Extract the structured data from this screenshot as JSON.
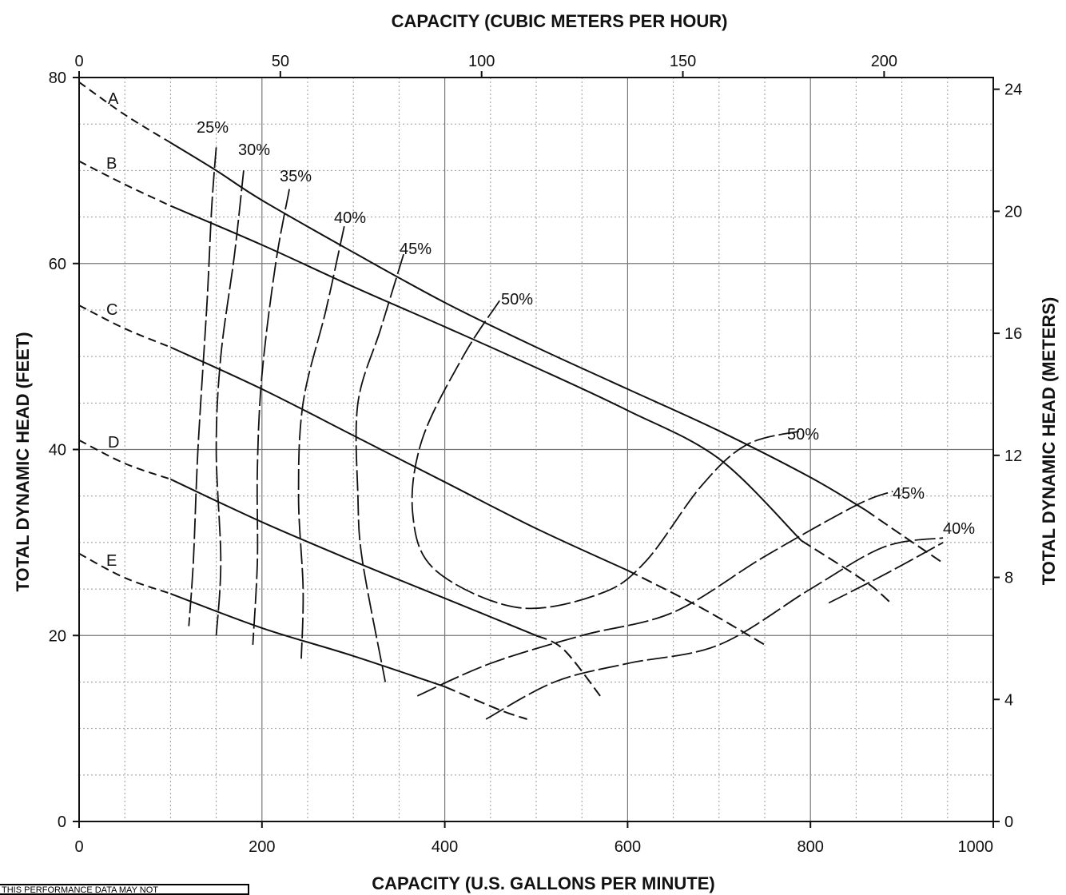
{
  "chart_data": {
    "type": "line",
    "title": "",
    "top_axis_title": "CAPACITY (CUBIC METERS PER HOUR)",
    "xlabel": "CAPACITY (U.S. GALLONS PER MINUTE)",
    "ylabel_left": "TOTAL DYNAMIC HEAD (FEET)",
    "ylabel_right": "TOTAL DYNAMIC HEAD (METERS)",
    "xlim": [
      0,
      1000
    ],
    "ylim": [
      0,
      80
    ],
    "x_ticks": [
      0,
      200,
      400,
      600,
      800,
      1000
    ],
    "y_ticks": [
      0,
      20,
      40,
      60,
      80
    ],
    "top_ticks": [
      0,
      50,
      100,
      150,
      200
    ],
    "right_ticks": [
      0,
      4,
      8,
      12,
      16,
      20,
      24
    ],
    "grid": true,
    "pump_curves": [
      {
        "name": "A",
        "dashed_until": 55,
        "points": [
          [
            0,
            79.5
          ],
          [
            50,
            76
          ],
          [
            100,
            73
          ],
          [
            150,
            70
          ],
          [
            200,
            66.8
          ],
          [
            300,
            61.2
          ],
          [
            400,
            55.8
          ],
          [
            500,
            51
          ],
          [
            600,
            46.5
          ],
          [
            700,
            42
          ],
          [
            800,
            37
          ],
          [
            860,
            33.5
          ],
          [
            900,
            30.8
          ],
          [
            945,
            27.8
          ]
        ]
      },
      {
        "name": "B",
        "dashed_until": 60,
        "points": [
          [
            0,
            71
          ],
          [
            50,
            68.5
          ],
          [
            100,
            66.2
          ],
          [
            200,
            62
          ],
          [
            300,
            57.5
          ],
          [
            400,
            53.2
          ],
          [
            500,
            48.8
          ],
          [
            600,
            44.2
          ],
          [
            700,
            39
          ],
          [
            790,
            30.2
          ],
          [
            860,
            25.8
          ],
          [
            890,
            23.3
          ]
        ]
      },
      {
        "name": "C",
        "dashed_until": 60,
        "points": [
          [
            0,
            55.5
          ],
          [
            50,
            53
          ],
          [
            100,
            51
          ],
          [
            200,
            46.5
          ],
          [
            300,
            41.5
          ],
          [
            400,
            36.5
          ],
          [
            500,
            31.5
          ],
          [
            600,
            27
          ],
          [
            680,
            23
          ],
          [
            750,
            19
          ]
        ]
      },
      {
        "name": "D",
        "dashed_until": 55,
        "points": [
          [
            0,
            41
          ],
          [
            50,
            38.5
          ],
          [
            100,
            36.8
          ],
          [
            200,
            32.2
          ],
          [
            300,
            28
          ],
          [
            400,
            24
          ],
          [
            500,
            20
          ],
          [
            530,
            18.5
          ],
          [
            570,
            13.5
          ]
        ]
      },
      {
        "name": "E",
        "dashed_until": 55,
        "points": [
          [
            0,
            28.8
          ],
          [
            50,
            26.2
          ],
          [
            100,
            24.5
          ],
          [
            200,
            20.8
          ],
          [
            300,
            17.8
          ],
          [
            400,
            14.5
          ],
          [
            460,
            12
          ],
          [
            490,
            11
          ]
        ]
      }
    ],
    "efficiency_curves": [
      {
        "name": "25%",
        "points": [
          [
            150,
            72.5
          ],
          [
            145,
            66
          ],
          [
            140,
            56
          ],
          [
            130,
            40
          ],
          [
            125,
            28
          ],
          [
            120,
            21
          ]
        ]
      },
      {
        "name": "30%",
        "points": [
          [
            180,
            70
          ],
          [
            170,
            61
          ],
          [
            155,
            50
          ],
          [
            150,
            40
          ],
          [
            155,
            28
          ],
          [
            150,
            20
          ]
        ]
      },
      {
        "name": "35%",
        "points": [
          [
            230,
            68
          ],
          [
            215,
            60
          ],
          [
            200,
            48
          ],
          [
            195,
            38
          ],
          [
            195,
            28
          ],
          [
            190,
            19
          ]
        ]
      },
      {
        "name": "40%",
        "points": [
          [
            290,
            64
          ],
          [
            270,
            55
          ],
          [
            245,
            45
          ],
          [
            240,
            35
          ],
          [
            245,
            25
          ],
          [
            243,
            17.5
          ]
        ]
      },
      {
        "name": "45%",
        "points": [
          [
            355,
            61
          ],
          [
            330,
            53
          ],
          [
            305,
            45
          ],
          [
            305,
            35
          ],
          [
            310,
            28
          ],
          [
            335,
            15
          ]
        ]
      },
      {
        "name": "50%",
        "points": [
          [
            460,
            56
          ],
          [
            420,
            50
          ],
          [
            375,
            41
          ],
          [
            365,
            33
          ],
          [
            390,
            27
          ],
          [
            480,
            23
          ],
          [
            570,
            24.5
          ],
          [
            620,
            28
          ],
          [
            680,
            36
          ],
          [
            730,
            40.5
          ],
          [
            790,
            42
          ]
        ]
      },
      {
        "name": "50%",
        "points": [
          [
            370,
            13.5
          ],
          [
            450,
            17
          ],
          [
            550,
            20
          ],
          [
            650,
            22.5
          ],
          [
            750,
            28.5
          ],
          [
            850,
            34
          ],
          [
            890,
            35.5
          ]
        ]
      },
      {
        "name": "45%",
        "points": [
          [
            445,
            11
          ],
          [
            520,
            15
          ],
          [
            600,
            17
          ],
          [
            700,
            19
          ],
          [
            800,
            25
          ],
          [
            880,
            29.5
          ],
          [
            945,
            30.5
          ]
        ]
      },
      {
        "name": "40%",
        "points": [
          [
            820,
            23.5
          ],
          [
            880,
            26.5
          ],
          [
            945,
            30
          ]
        ]
      }
    ]
  },
  "labels": {
    "A": "A",
    "B": "B",
    "C": "C",
    "D": "D",
    "E": "E",
    "eff_25": "25%",
    "eff_30": "30%",
    "eff_35": "35%",
    "eff_40": "40%",
    "eff_45": "45%",
    "eff_50_top": "50%",
    "eff_50_right": "50%",
    "eff_45_right": "45%",
    "eff_40_right": "40%"
  },
  "disclaimer": "THIS PERFORMANCE DATA MAY NOT"
}
